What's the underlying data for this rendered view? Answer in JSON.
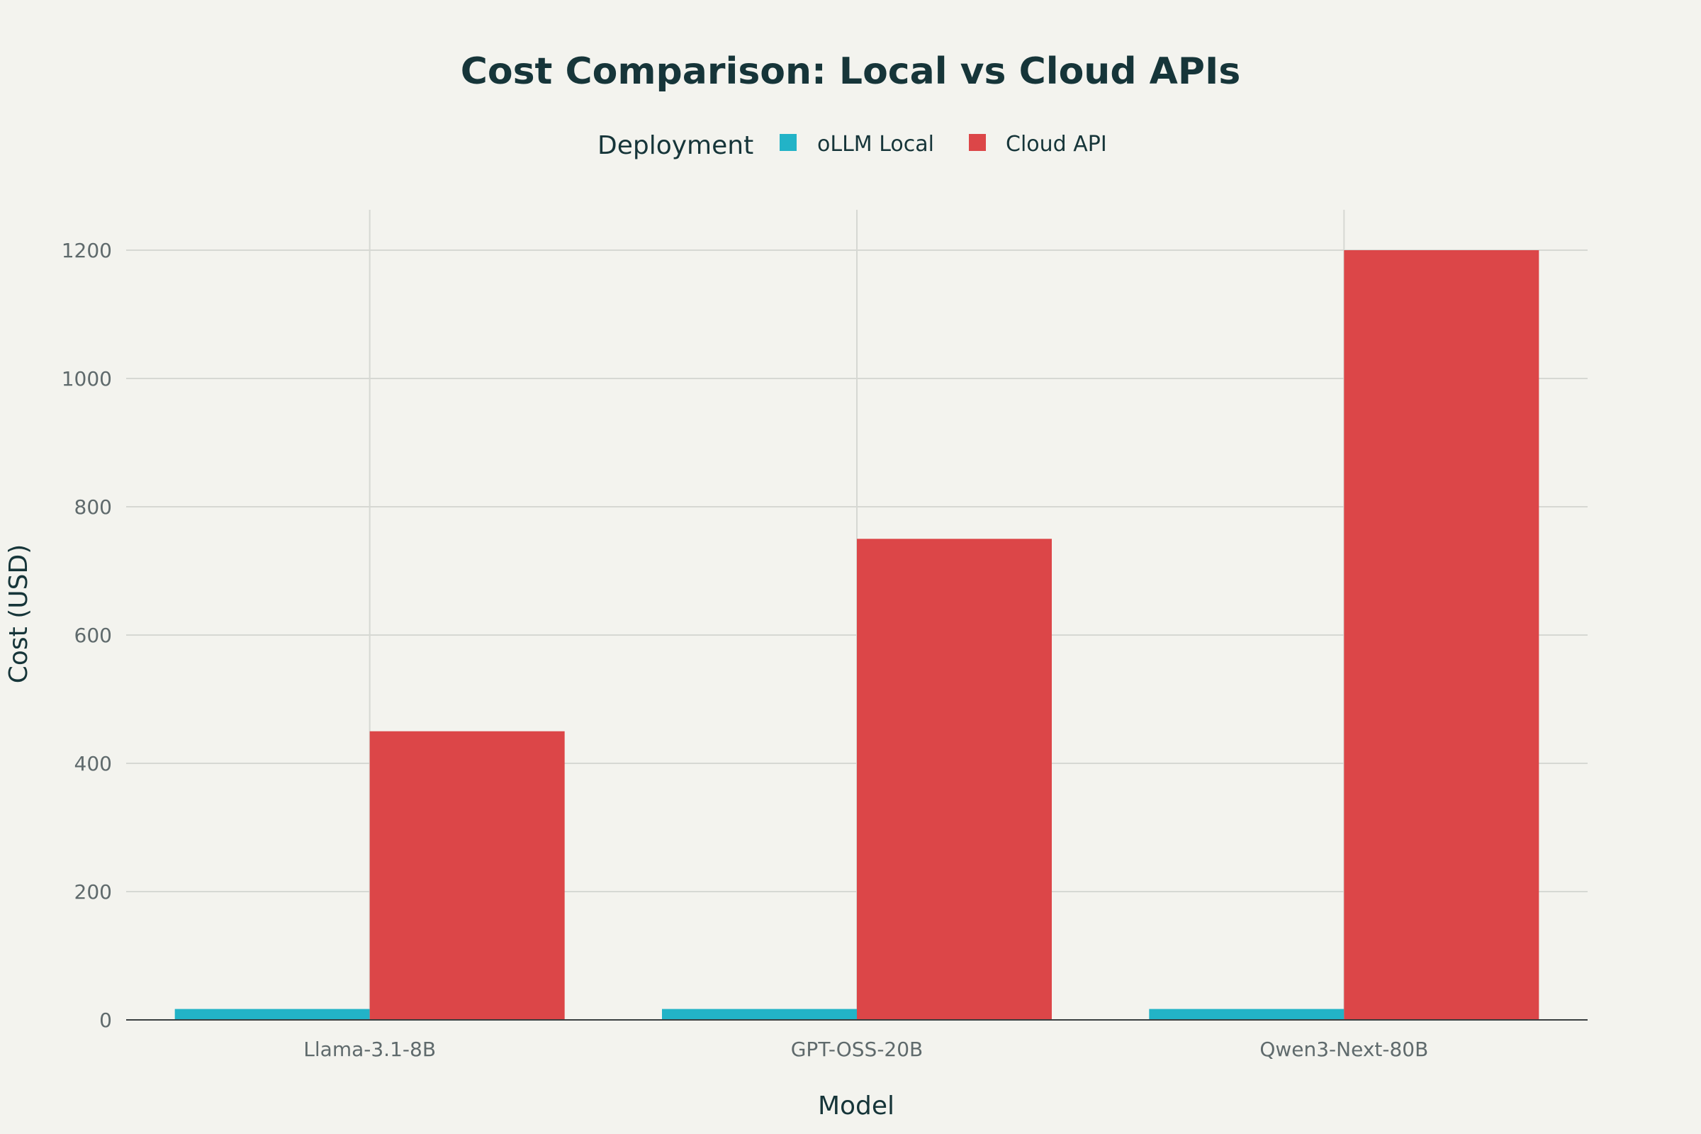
{
  "chart_data": {
    "type": "bar",
    "title": "Cost Comparison: Local vs Cloud APIs",
    "legend_title": "Deployment",
    "legend_placement": "top-center",
    "xlabel": "Model",
    "ylabel": "Cost (USD)",
    "categories": [
      "Llama-3.1-8B",
      "GPT-OSS-20B",
      "Qwen3-Next-80B"
    ],
    "series": [
      {
        "name": "oLLM Local",
        "color": "#22b3c7",
        "values": [
          17,
          17,
          17
        ]
      },
      {
        "name": "Cloud API",
        "color": "#dc4648",
        "values": [
          450,
          750,
          1200
        ]
      }
    ],
    "ylim": [
      0,
      1263
    ],
    "yticks": [
      0,
      200,
      400,
      600,
      800,
      1000,
      1200
    ],
    "grid": true,
    "barmode": "grouped"
  }
}
